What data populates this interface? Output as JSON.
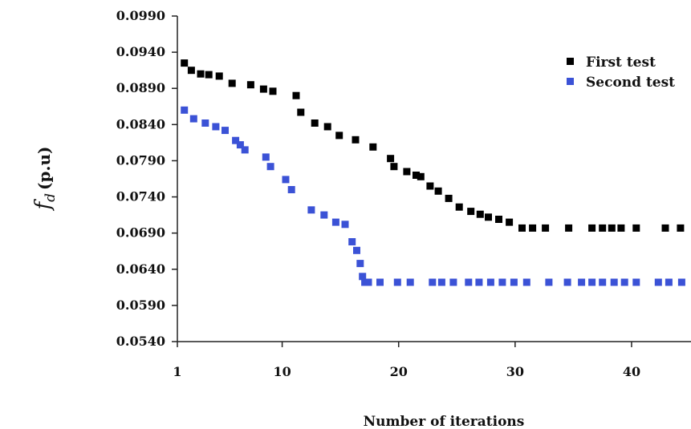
{
  "chart_data": {
    "type": "scatter",
    "xlabel": "Number of iterations",
    "ylabel_main": "f",
    "ylabel_sub": "d",
    "ylabel_unit": "(p.u)",
    "xlim": [
      1,
      44
    ],
    "ylim": [
      0.054,
      0.099
    ],
    "x_ticks": [
      {
        "value": 1,
        "label": "1"
      },
      {
        "value": 10,
        "label": "10"
      },
      {
        "value": 20,
        "label": "20"
      },
      {
        "value": 30,
        "label": "30"
      },
      {
        "value": 40,
        "label": "40"
      }
    ],
    "y_ticks": [
      {
        "value": 0.054,
        "label": "0.0540"
      },
      {
        "value": 0.059,
        "label": "0.0590"
      },
      {
        "value": 0.064,
        "label": "0.0640"
      },
      {
        "value": 0.069,
        "label": "0.0690"
      },
      {
        "value": 0.074,
        "label": "0.0740"
      },
      {
        "value": 0.079,
        "label": "0.0790"
      },
      {
        "value": 0.084,
        "label": "0.0840"
      },
      {
        "value": 0.089,
        "label": "0.0890"
      },
      {
        "value": 0.094,
        "label": "0.0940"
      },
      {
        "value": 0.099,
        "label": "0.0990"
      }
    ],
    "grid": false,
    "legend": "top-right",
    "series": [
      {
        "name": "First test",
        "color": "#000000",
        "x": [
          1.6,
          2.2,
          3,
          3.7,
          4.6,
          5.7,
          7.3,
          8.4,
          9.2,
          11.2,
          11.6,
          12.8,
          13.9,
          14.9,
          16.3,
          17.8,
          19.3,
          19.6,
          20.7,
          21.5,
          21.9,
          22.7,
          23.4,
          24.3,
          25.2,
          26.2,
          27,
          27.7,
          28.6,
          29.5,
          30.6,
          31.5,
          32.6,
          34.6,
          36.6,
          37.5,
          38.3,
          39.1,
          40.4,
          42.9,
          44.2
        ],
        "y": [
          0.0925,
          0.0915,
          0.091,
          0.0909,
          0.0907,
          0.0897,
          0.0895,
          0.0889,
          0.0886,
          0.088,
          0.0857,
          0.0842,
          0.0837,
          0.0825,
          0.0819,
          0.0809,
          0.0793,
          0.0782,
          0.0775,
          0.077,
          0.0768,
          0.0755,
          0.0748,
          0.0738,
          0.0726,
          0.072,
          0.0716,
          0.0712,
          0.0709,
          0.0705,
          0.0697,
          0.0697,
          0.0697,
          0.0697,
          0.0697,
          0.0697,
          0.0697,
          0.0697,
          0.0697,
          0.0697,
          0.0697
        ]
      },
      {
        "name": "Second test",
        "color": "#3b52d6",
        "x": [
          1.6,
          2.4,
          3.4,
          4.3,
          5.1,
          6,
          6.4,
          6.8,
          8.6,
          9,
          10.3,
          10.8,
          12.5,
          13.6,
          14.6,
          15.4,
          16,
          16.4,
          16.7,
          16.9,
          17.1,
          17.4,
          18.4,
          19.9,
          21,
          22.9,
          23.7,
          24.7,
          26,
          26.9,
          27.9,
          28.9,
          29.9,
          31,
          32.9,
          34.5,
          35.7,
          36.6,
          37.5,
          38.5,
          39.4,
          40.4,
          42.3,
          43.2,
          44.3
        ],
        "y": [
          0.086,
          0.0848,
          0.0842,
          0.0837,
          0.0832,
          0.0818,
          0.0812,
          0.0805,
          0.0795,
          0.0782,
          0.0764,
          0.075,
          0.0722,
          0.0715,
          0.0705,
          0.0702,
          0.0678,
          0.0666,
          0.0648,
          0.063,
          0.0622,
          0.0622,
          0.0622,
          0.0622,
          0.0622,
          0.0622,
          0.0622,
          0.0622,
          0.0622,
          0.0622,
          0.0622,
          0.0622,
          0.0622,
          0.0622,
          0.0622,
          0.0622,
          0.0622,
          0.0622,
          0.0622,
          0.0622,
          0.0622,
          0.0622,
          0.0622,
          0.0622,
          0.0622
        ]
      }
    ]
  }
}
